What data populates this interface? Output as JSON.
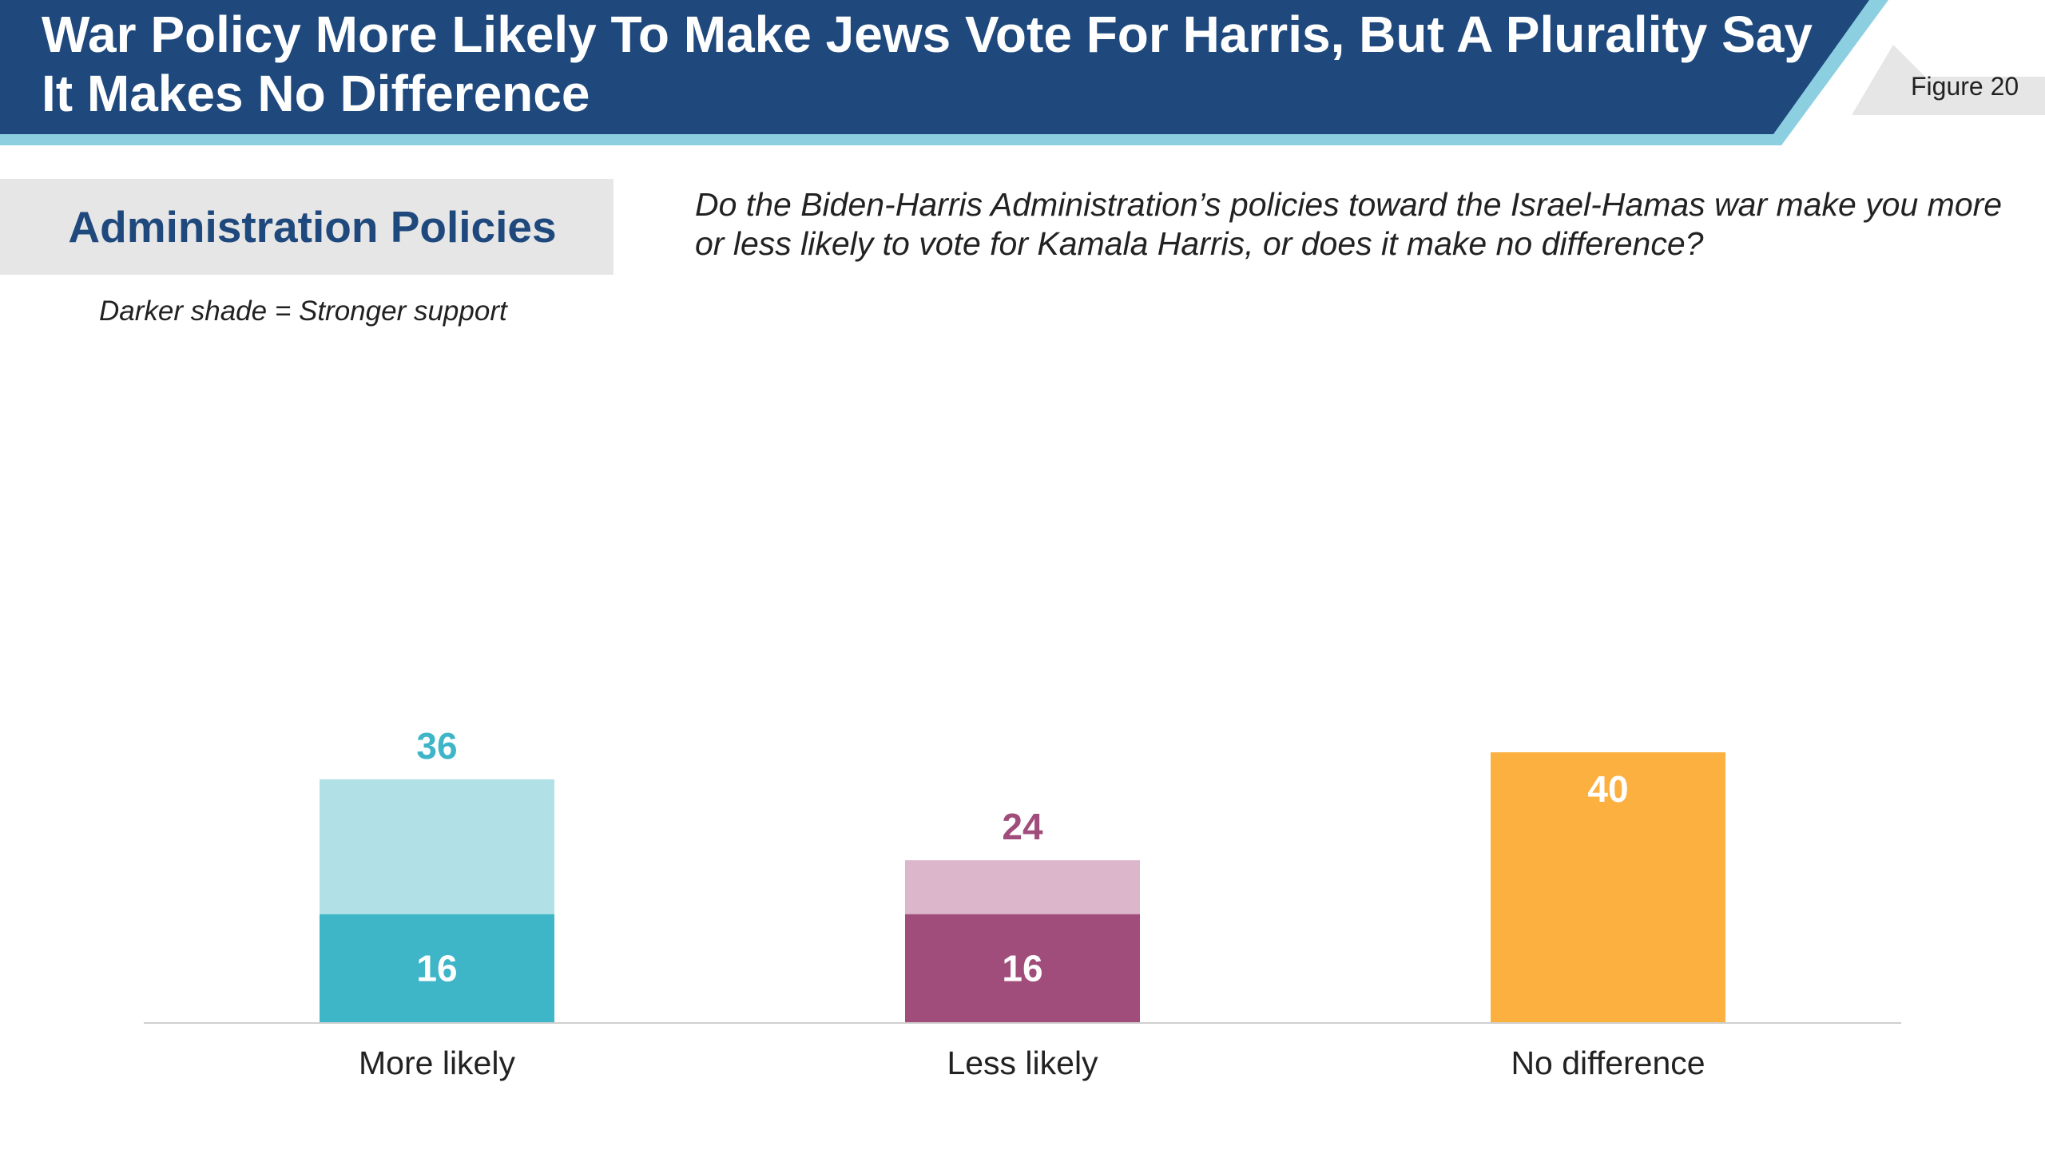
{
  "header": {
    "title": "War Policy More Likely To Make Jews Vote For Harris, But A Plurality Say It Makes No Difference",
    "figure_label": "Figure 20"
  },
  "section": {
    "title": "Administration Policies",
    "legend_note": "Darker shade = Stronger support"
  },
  "question": "Do the Biden-Harris Administration’s policies toward the Israel-Hamas war make you more or less likely to vote for Kamala Harris, or does it make no difference?",
  "colors": {
    "header_navy": "#1f497d",
    "header_accent": "#8ccfe0",
    "more_dark": "#3fb5c8",
    "more_light": "#b1e1e7",
    "less_dark": "#a04d7b",
    "less_light": "#dcb6cb",
    "no_difference": "#fcb040"
  },
  "chart_data": {
    "type": "bar",
    "stacked": true,
    "categories": [
      "More likely",
      "Less likely",
      "No difference"
    ],
    "totals": [
      36,
      24,
      40
    ],
    "strong": [
      16,
      16,
      null
    ],
    "ylim": [
      0,
      40
    ],
    "xlabel": "",
    "ylabel": ""
  }
}
